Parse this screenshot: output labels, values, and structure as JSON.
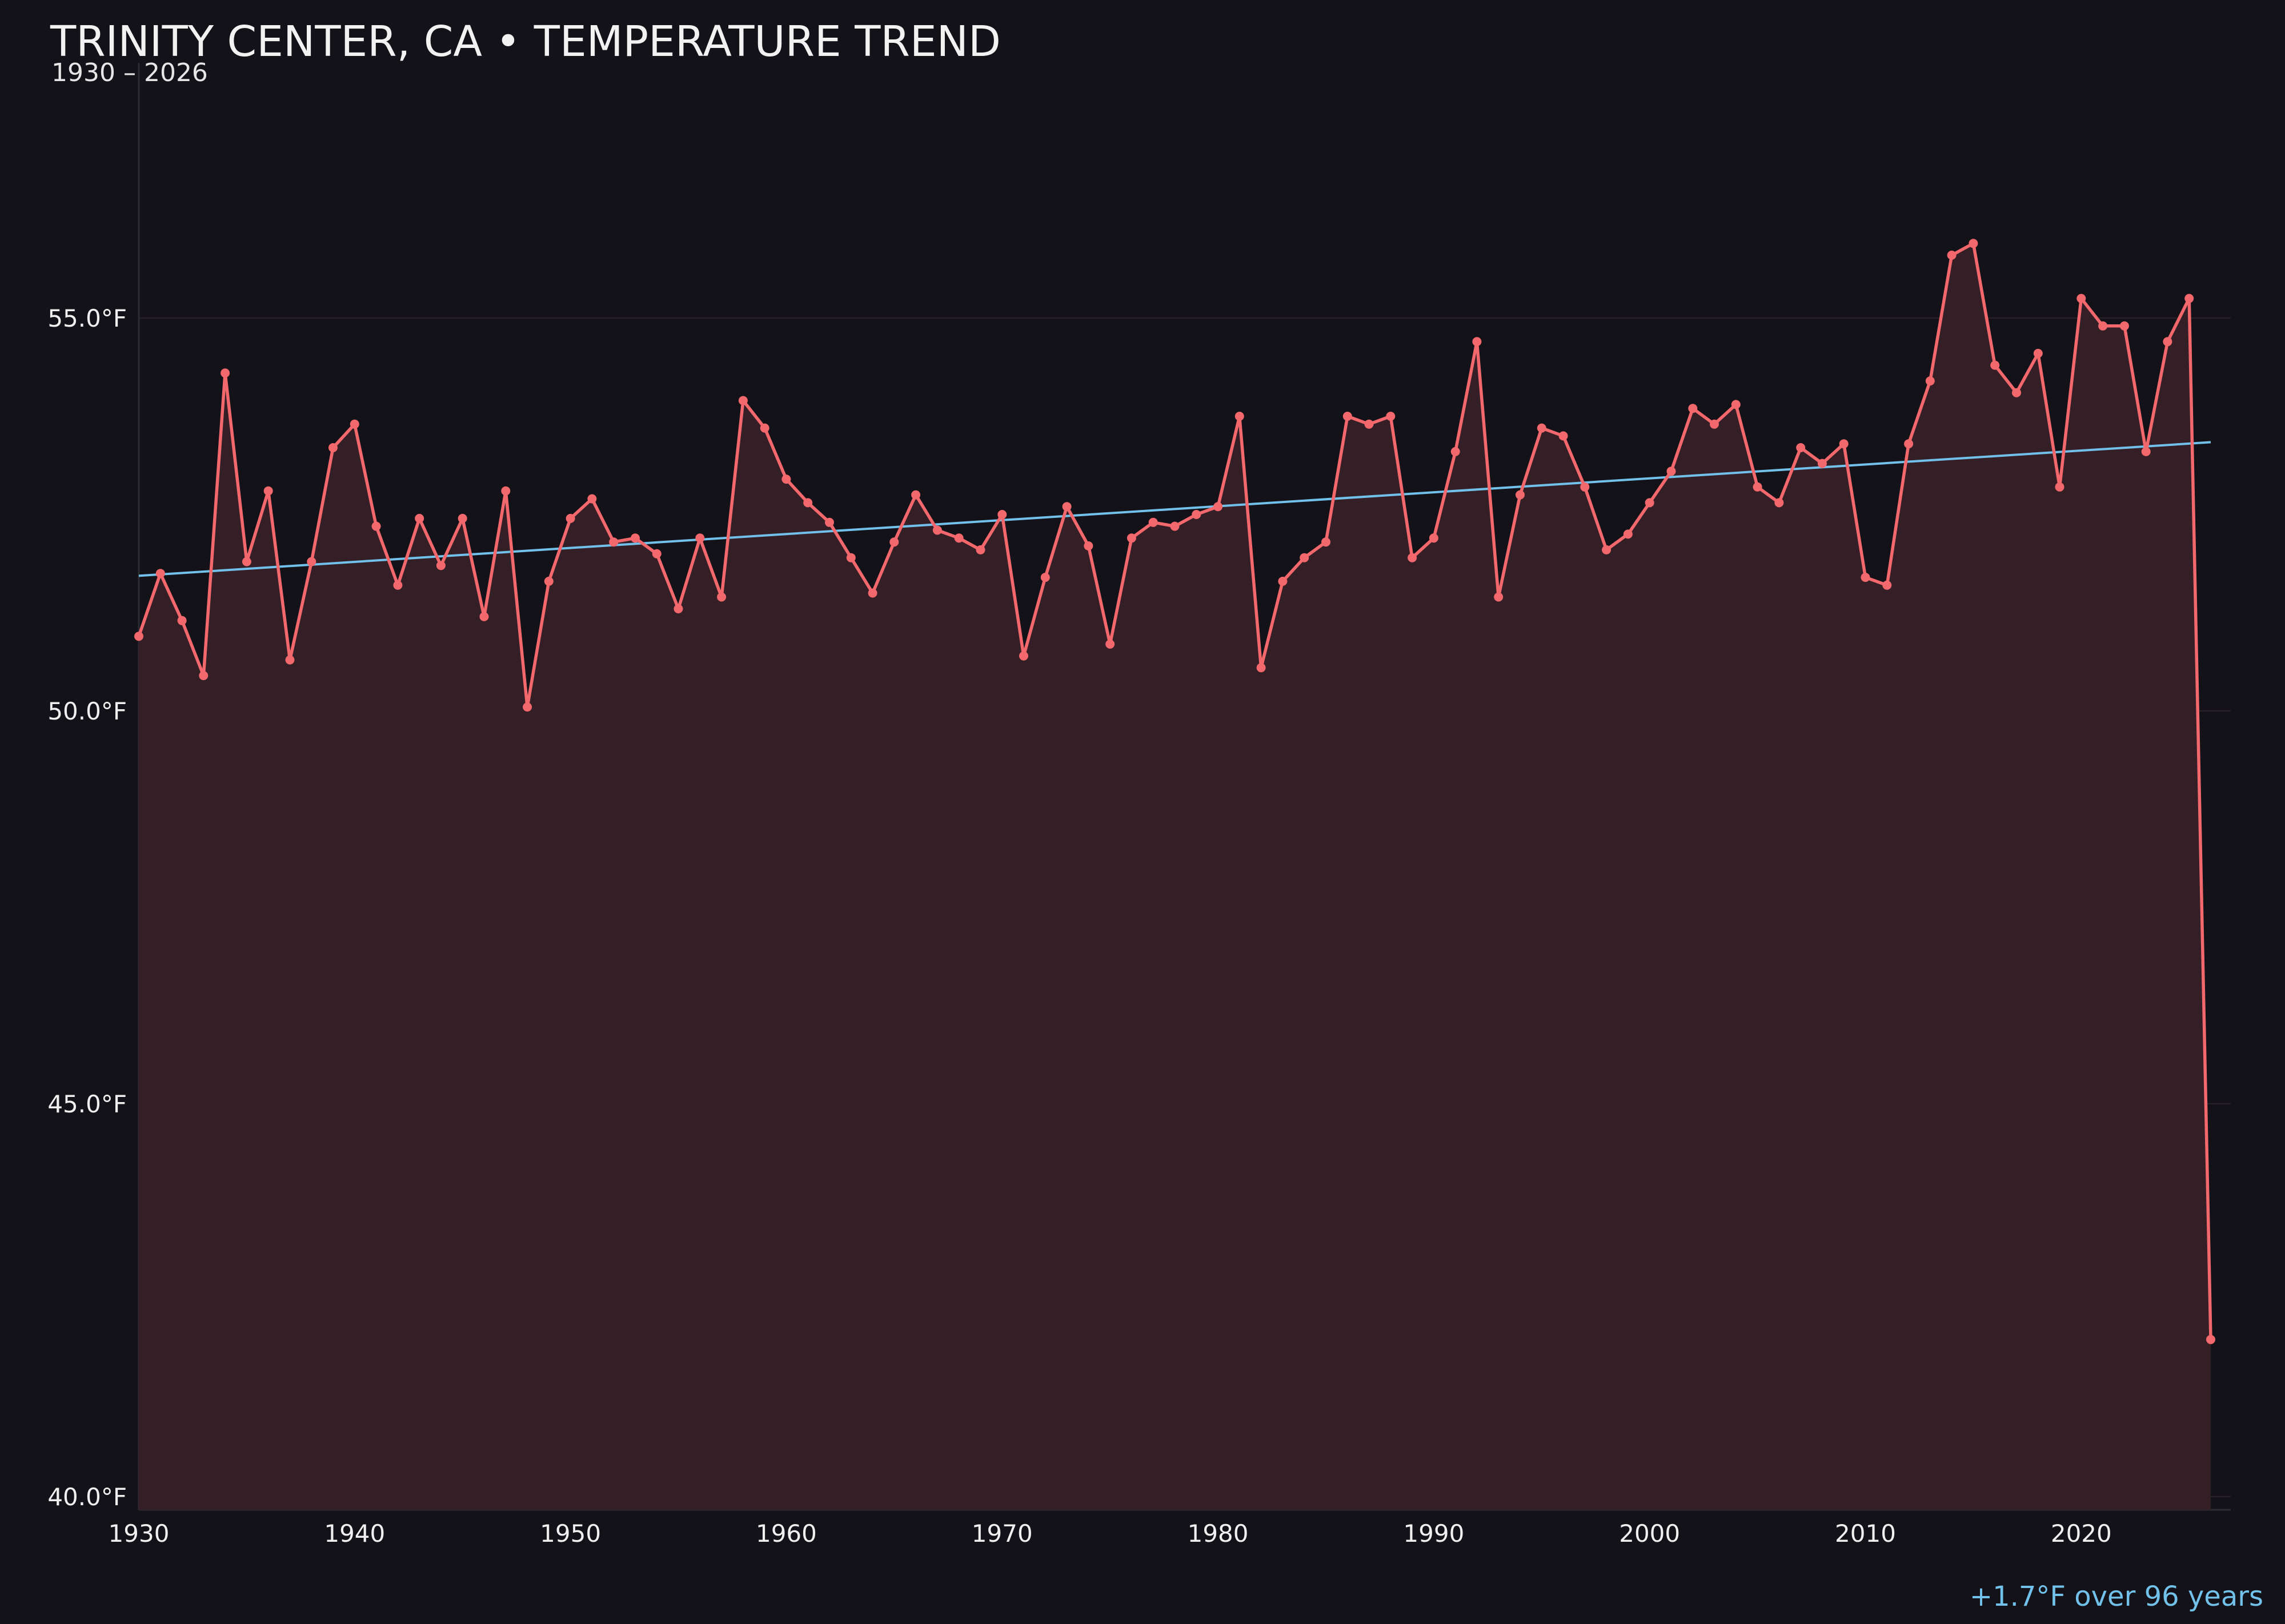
{
  "chart_data": {
    "type": "line",
    "title": "TRINITY CENTER, CA • TEMPERATURE TREND",
    "subtitle": "1930 – 2026",
    "xlabel": "",
    "ylabel": "",
    "xlim": [
      1930,
      2027
    ],
    "ylim": [
      39.8,
      58.1
    ],
    "x_ticks": [
      1930,
      1940,
      1950,
      1960,
      1970,
      1980,
      1990,
      2000,
      2010,
      2020
    ],
    "x_tick_labels": [
      "1930",
      "1940",
      "1950",
      "1960",
      "1970",
      "1980",
      "1990",
      "2000",
      "2010",
      "2020"
    ],
    "y_ticks": [
      40,
      45,
      50,
      55
    ],
    "y_tick_labels": [
      "40.0°F",
      "45.0°F",
      "50.0°F",
      "55.0°F"
    ],
    "grid": true,
    "annotation": "+1.7°F over 96 years",
    "colors": {
      "background": "#131218",
      "line": "#f2686c",
      "area": "#351f26",
      "trend": "#72c1ea",
      "grid": "#2a2228"
    },
    "series": [
      {
        "x": [
          1930,
          1931,
          1932,
          1933,
          1934,
          1935,
          1936,
          1937,
          1938,
          1939,
          1940,
          1941,
          1942,
          1943,
          1944,
          1945,
          1946,
          1947,
          1948,
          1949,
          1950,
          1951,
          1952,
          1953,
          1954,
          1955,
          1956,
          1957,
          1958,
          1959,
          1960,
          1961,
          1962,
          1963,
          1964,
          1965,
          1966,
          1967,
          1968,
          1969,
          1970,
          1971,
          1972,
          1973,
          1974,
          1975,
          1976,
          1977,
          1978,
          1979,
          1980,
          1981,
          1982,
          1983,
          1984,
          1985,
          1986,
          1987,
          1988,
          1989,
          1990,
          1991,
          1992,
          1993,
          1994,
          1995,
          1996,
          1997,
          1998,
          1999,
          2000,
          2001,
          2002,
          2003,
          2004,
          2005,
          2006,
          2007,
          2008,
          2009,
          2010,
          2011,
          2012,
          2013,
          2014,
          2015,
          2016,
          2017,
          2018,
          2019,
          2020,
          2021,
          2022,
          2023,
          2024,
          2025,
          2026
        ],
        "values": [
          50.95,
          51.75,
          51.15,
          50.45,
          54.3,
          51.9,
          52.8,
          50.65,
          51.9,
          53.35,
          53.65,
          52.35,
          51.6,
          52.45,
          51.85,
          52.45,
          51.2,
          52.8,
          50.05,
          51.65,
          52.45,
          52.7,
          52.15,
          52.2,
          52.0,
          51.3,
          52.2,
          51.45,
          53.95,
          53.6,
          52.95,
          52.65,
          52.4,
          51.95,
          51.5,
          52.15,
          52.75,
          52.3,
          52.2,
          52.05,
          52.5,
          50.7,
          51.7,
          52.6,
          52.1,
          50.85,
          52.2,
          52.4,
          52.35,
          52.5,
          52.6,
          53.75,
          50.55,
          51.65,
          51.95,
          52.15,
          53.75,
          53.65,
          53.75,
          51.95,
          52.2,
          53.3,
          54.7,
          51.45,
          52.75,
          53.6,
          53.5,
          52.85,
          52.05,
          52.25,
          52.65,
          53.05,
          53.85,
          53.65,
          53.9,
          52.85,
          52.65,
          53.35,
          53.15,
          53.4,
          51.7,
          51.6,
          53.4,
          54.2,
          55.8,
          55.95,
          54.4,
          54.05,
          54.55,
          52.85,
          55.25,
          54.9,
          54.9,
          53.3,
          54.7,
          55.25,
          42.0
        ]
      },
      {
        "x": [
          1930,
          2026
        ],
        "values": [
          51.72,
          53.42
        ]
      }
    ]
  }
}
